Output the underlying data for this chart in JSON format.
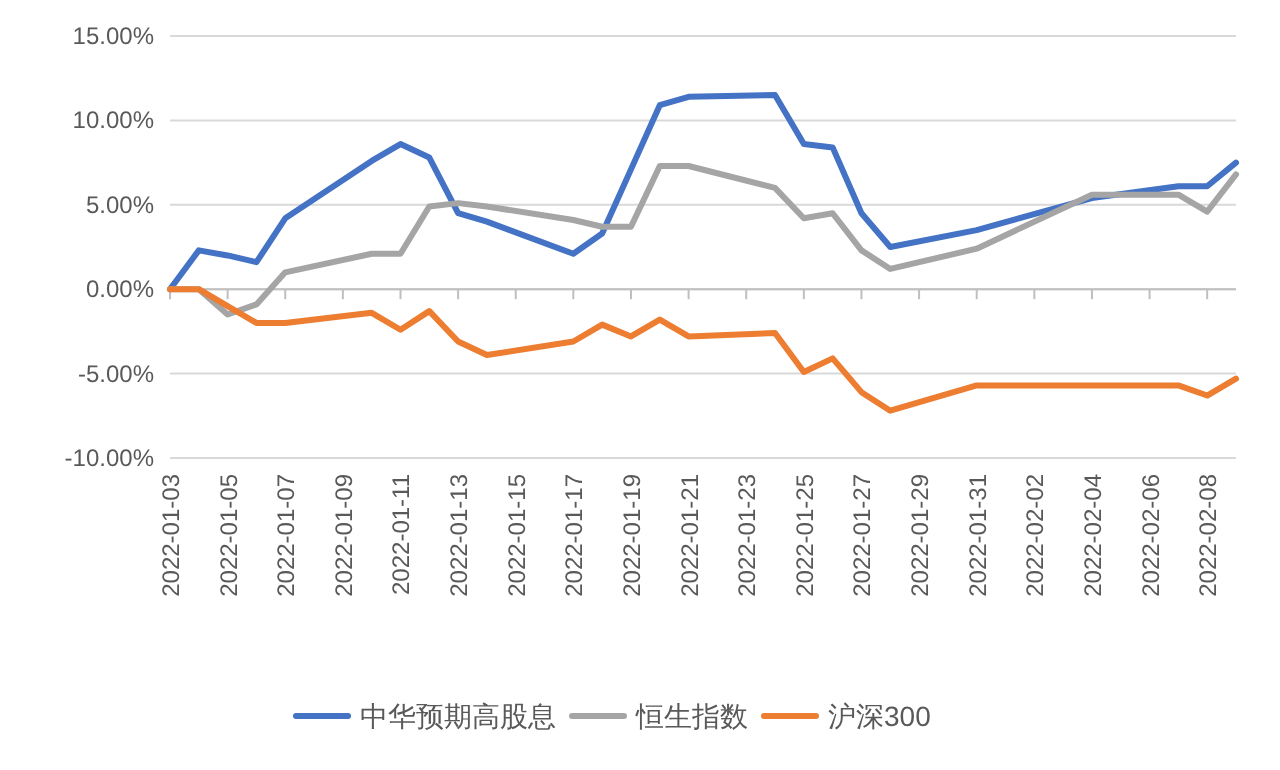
{
  "chart_data": {
    "type": "line",
    "x": [
      "2022-01-03",
      "2022-01-04",
      "2022-01-05",
      "2022-01-06",
      "2022-01-07",
      "2022-01-10",
      "2022-01-11",
      "2022-01-12",
      "2022-01-13",
      "2022-01-14",
      "2022-01-17",
      "2022-01-18",
      "2022-01-19",
      "2022-01-20",
      "2022-01-21",
      "2022-01-24",
      "2022-01-25",
      "2022-01-26",
      "2022-01-27",
      "2022-01-28",
      "2022-01-31",
      "2022-02-04",
      "2022-02-07",
      "2022-02-08",
      "2022-02-09"
    ],
    "series": [
      {
        "name": "中华预期高股息",
        "color": "#4472c4",
        "values": [
          0,
          2.3,
          2.0,
          1.6,
          4.2,
          7.6,
          8.6,
          7.8,
          4.5,
          4.0,
          2.1,
          3.3,
          7.1,
          10.9,
          11.4,
          11.5,
          8.6,
          8.4,
          4.5,
          2.5,
          3.5,
          5.4,
          6.1,
          6.1,
          7.5
        ]
      },
      {
        "name": "恒生指数",
        "color": "#a5a5a5",
        "values": [
          0,
          0,
          -1.5,
          -0.9,
          1.0,
          2.1,
          2.1,
          4.9,
          5.1,
          4.9,
          4.1,
          3.7,
          3.7,
          7.3,
          7.3,
          6.0,
          4.2,
          4.5,
          2.3,
          1.2,
          2.4,
          5.6,
          5.6,
          4.6,
          6.8
        ]
      },
      {
        "name": "沪深300",
        "color": "#ed7d31",
        "values": [
          0,
          0,
          -1.0,
          -2.0,
          -2.0,
          -1.4,
          -2.4,
          -1.3,
          -3.1,
          -3.9,
          -3.1,
          -2.1,
          -2.8,
          -1.8,
          -2.8,
          -2.6,
          -4.9,
          -4.1,
          -6.1,
          -7.2,
          -5.7,
          -5.7,
          -5.7,
          -6.3,
          -5.3
        ]
      }
    ],
    "xlim": [
      "2022-01-03",
      "2022-02-09"
    ],
    "xticks": [
      "2022-01-03",
      "2022-01-05",
      "2022-01-07",
      "2022-01-09",
      "2022-01-11",
      "2022-01-13",
      "2022-01-15",
      "2022-01-17",
      "2022-01-19",
      "2022-01-21",
      "2022-01-23",
      "2022-01-25",
      "2022-01-27",
      "2022-01-29",
      "2022-01-31",
      "2022-02-02",
      "2022-02-04",
      "2022-02-06",
      "2022-02-08"
    ],
    "ylim": [
      -10,
      15
    ],
    "yticks": [
      {
        "value": -10,
        "label": "-10.00%"
      },
      {
        "value": -5,
        "label": "-5.00%"
      },
      {
        "value": 0,
        "label": "0.00%"
      },
      {
        "value": 5,
        "label": "5.00%"
      },
      {
        "value": 10,
        "label": "10.00%"
      },
      {
        "value": 15,
        "label": "15.00%"
      }
    ],
    "grid": "y",
    "legend": "bottom",
    "marker": "none",
    "line_style": "solid"
  }
}
